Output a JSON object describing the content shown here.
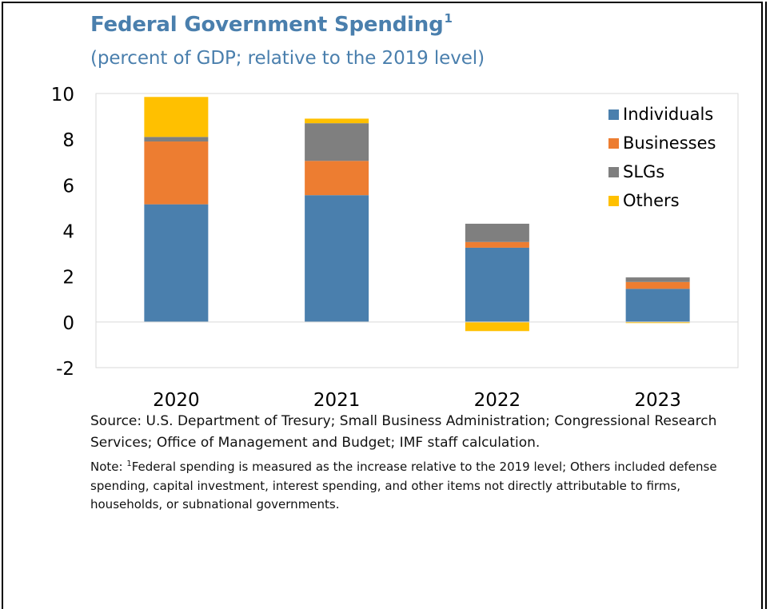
{
  "title": "Federal Government Spending",
  "title_superscript": "1",
  "subtitle": "(percent of GDP; relative to the 2019 level)",
  "source": "Source: U.S. Department of Tresury; Small Business Administration; Congressional Research Services; Office of Management and Budget; IMF staff calculation.",
  "note_label": "Note: ",
  "note_superscript": "1",
  "note_text": "Federal spending is measured as the increase relative to the 2019 level; Others included defense spending, capital investment, interest spending, and other items not directly attributable to firms, households, or subnational governments.",
  "colors": {
    "Individuals": "#4a7fad",
    "Businesses": "#ed7d31",
    "SLGs": "#7f7f7f",
    "Others": "#ffc000"
  },
  "chart_data": {
    "type": "bar",
    "stacked": true,
    "title": "Federal Government Spending",
    "subtitle": "(percent of GDP; relative to the 2019 level)",
    "categories": [
      "2020",
      "2021",
      "2022",
      "2023"
    ],
    "series": [
      {
        "name": "Individuals",
        "values": [
          5.15,
          5.55,
          3.25,
          1.45
        ]
      },
      {
        "name": "Businesses",
        "values": [
          2.75,
          1.5,
          0.25,
          0.3
        ]
      },
      {
        "name": "SLGs",
        "values": [
          0.2,
          1.65,
          0.8,
          0.2
        ]
      },
      {
        "name": "Others",
        "values": [
          1.75,
          0.2,
          -0.4,
          -0.05
        ]
      }
    ],
    "ylim": [
      -2,
      10
    ],
    "yticks": [
      -2,
      0,
      2,
      4,
      6,
      8,
      10
    ],
    "xlabel": "",
    "ylabel": "",
    "legend_position": "top-right",
    "grid": false
  }
}
